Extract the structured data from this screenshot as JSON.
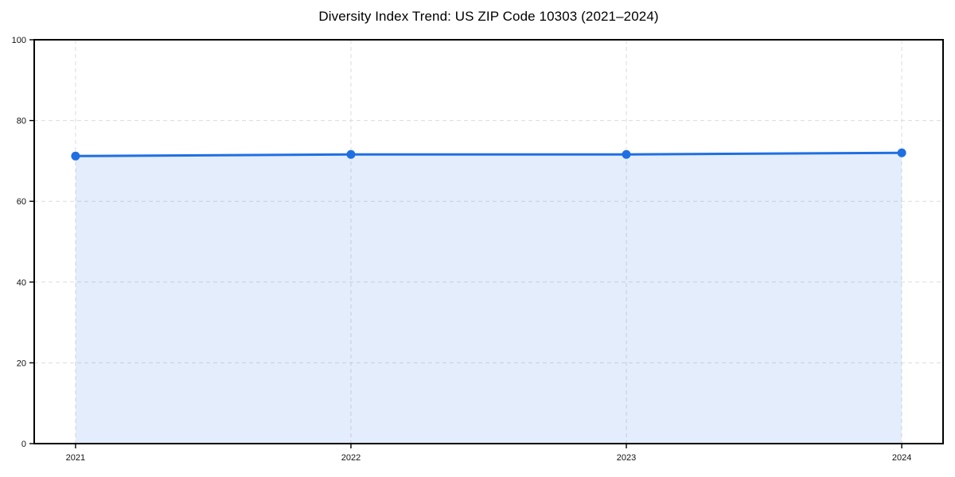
{
  "figure": {
    "background": "#ffffff"
  },
  "chart_data": {
    "type": "area",
    "title": "Diversity Index Trend: US ZIP Code 10303 (2021–2024)",
    "xlabel": "",
    "ylabel": "",
    "x": [
      2021,
      2022,
      2023,
      2024
    ],
    "xticks": [
      "2021",
      "2022",
      "2023",
      "2024"
    ],
    "series": [
      {
        "name": "Diversity Index",
        "values": [
          71.2,
          71.6,
          71.6,
          72.0
        ]
      }
    ],
    "ylim": [
      0,
      100
    ],
    "yticks": [
      0,
      20,
      40,
      60,
      80,
      100
    ],
    "grid": true,
    "grid_style": "dashed",
    "legend": "none",
    "marker": "circle",
    "colors": {
      "line": "#1f6fe3",
      "fill_opacity": 0.12,
      "grid": "#dcdcdc",
      "spine": "#000000",
      "tick_label": "#111111",
      "background": "#ffffff"
    }
  }
}
